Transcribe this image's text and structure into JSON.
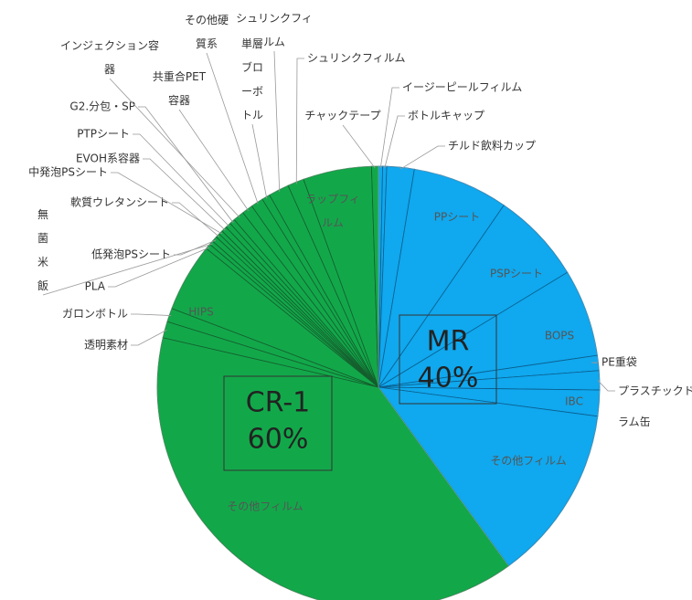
{
  "chart_data": {
    "type": "pie",
    "categories": [
      "イージーピールフィルム",
      "ボトルキャップ",
      "チルド飲料カップ",
      "PPシート",
      "PSPシート",
      "BOPS",
      "PE重袋",
      "プラスチックドラム缶",
      "IBC",
      "その他フィルム",
      "その他フィルム",
      "透明素材",
      "ガロンボトル",
      "HIPS",
      "PLA",
      "無菌米飯",
      "低発泡PSシート",
      "軟質ウレタンシート",
      "中発泡PSシート",
      "EVOH系容器",
      "PTPシート",
      "G2.分包・SP",
      "インジェクション容器",
      "共重合PET容器",
      "その他硬質系",
      "単層ブローボトル",
      "シュリンクフィルム",
      "シュリンクフィルム",
      "ラップフィルム",
      "チャックテープ"
    ],
    "values": [
      0.3,
      0.3,
      2,
      7,
      6.7,
      6.4,
      1.1,
      1.4,
      1.9,
      12.9,
      38.6,
      1.2,
      1.0,
      5.0,
      0.4,
      0.3,
      0.4,
      0.3,
      0.3,
      0.4,
      0.4,
      0.4,
      0.8,
      0.8,
      0.9,
      0.6,
      1.5,
      1.2,
      5.0,
      0.5
    ],
    "colors": [
      "#10a8ee",
      "#10a8ee",
      "#10a8ee",
      "#10a8ee",
      "#10a8ee",
      "#10a8ee",
      "#10a8ee",
      "#10a8ee",
      "#10a8ee",
      "#10a8ee",
      "#12a84a",
      "#12a84a",
      "#12a84a",
      "#12a84a",
      "#12a84a",
      "#12a84a",
      "#12a84a",
      "#12a84a",
      "#12a84a",
      "#12a84a",
      "#12a84a",
      "#12a84a",
      "#12a84a",
      "#12a84a",
      "#12a84a",
      "#12a84a",
      "#12a84a",
      "#12a84a",
      "#12a84a",
      "#12a84a"
    ],
    "groups": [
      {
        "name": "MR",
        "value": 40,
        "value_label": "40%"
      },
      {
        "name": "CR-1",
        "value": 60,
        "value_label": "60%"
      }
    ]
  }
}
